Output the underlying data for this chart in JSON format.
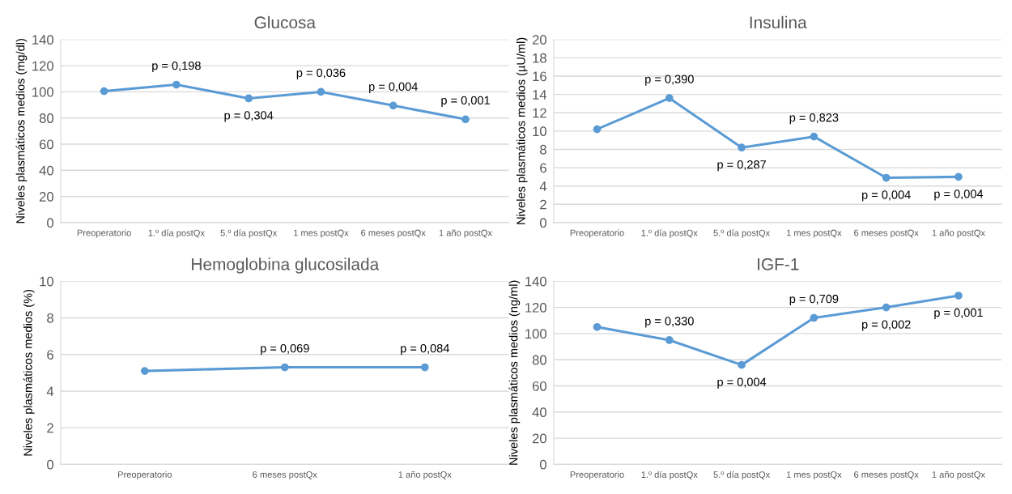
{
  "chart_data": [
    {
      "type": "line",
      "title": "Glucosa",
      "ylabel": "Niveles plasmáticos medios (mg/dl)",
      "categories": [
        "Preoperatorio",
        "1.º día postQx",
        "5.º día postQx",
        "1 mes postQx",
        "6 meses postQx",
        "1 año postQx"
      ],
      "series": [
        {
          "color": "#5b9bd5",
          "values": [
            100.5,
            105.5,
            95,
            100,
            89.5,
            79
          ]
        }
      ],
      "ylim": [
        0,
        140
      ],
      "yticks": [
        0,
        20,
        40,
        60,
        80,
        100,
        120,
        140
      ],
      "grid": "y",
      "marker": "circle",
      "line_style": "solid",
      "annotations": [
        {
          "text": "p = 0,198",
          "x": "1.º día postQx",
          "y": 105.5
        },
        {
          "text": "p = 0,304",
          "x": "5.º día postQx",
          "y": 95
        },
        {
          "text": "p = 0,036",
          "x": "1 mes postQx",
          "y": 100
        },
        {
          "text": "p = 0,004",
          "x": "6 meses postQx",
          "y": 89.5
        },
        {
          "text": "p = 0,001",
          "x": "1 año postQx",
          "y": 79
        }
      ]
    },
    {
      "type": "line",
      "title": "Insulina",
      "ylabel": "Niveles plasmáticos medios (µU/ml)",
      "categories": [
        "Preoperatorio",
        "1.º día postQx",
        "5.º día postQx",
        "1 mes postQx",
        "6 meses postQx",
        "1 año postQx"
      ],
      "series": [
        {
          "color": "#5b9bd5",
          "values": [
            10.2,
            13.6,
            8.2,
            9.4,
            4.9,
            5.0
          ]
        }
      ],
      "ylim": [
        0,
        20
      ],
      "yticks": [
        0,
        2,
        4,
        6,
        8,
        10,
        12,
        14,
        16,
        18,
        20
      ],
      "grid": "y",
      "marker": "circle",
      "line_style": "solid",
      "annotations": [
        {
          "text": "p = 0,390",
          "x": "1.º día postQx",
          "y": 13.6
        },
        {
          "text": "p = 0,287",
          "x": "5.º día postQx",
          "y": 8.2
        },
        {
          "text": "p = 0,823",
          "x": "1 mes postQx",
          "y": 9.4
        },
        {
          "text": "p = 0,004",
          "x": "6 meses postQx",
          "y": 4.9
        },
        {
          "text": "p = 0,004",
          "x": "1 año postQx",
          "y": 5.0
        }
      ]
    },
    {
      "type": "line",
      "title": "Hemoglobina glucosilada",
      "ylabel": "Niveles plasmáticos medios (%)",
      "categories": [
        "Preoperatorio",
        "6 meses postQx",
        "1 año postQx"
      ],
      "series": [
        {
          "color": "#5b9bd5",
          "values": [
            5.1,
            5.3,
            5.3
          ]
        }
      ],
      "ylim": [
        0,
        10
      ],
      "yticks": [
        0,
        2,
        4,
        6,
        8,
        10
      ],
      "grid": "y",
      "marker": "circle",
      "line_style": "solid",
      "annotations": [
        {
          "text": "p = 0,069",
          "x": "6 meses postQx",
          "y": 5.3
        },
        {
          "text": "p = 0,084",
          "x": "1 año postQx",
          "y": 5.3
        }
      ]
    },
    {
      "type": "line",
      "title": "IGF-1",
      "ylabel": "Niveles plasmáticos medios (ng/ml)",
      "categories": [
        "Preoperatorio",
        "1.º día postQx",
        "5.º día postQx",
        "1 mes postQx",
        "6 meses postQx",
        "1 año postQx"
      ],
      "series": [
        {
          "color": "#5b9bd5",
          "values": [
            105,
            95,
            76,
            112,
            120,
            129
          ]
        }
      ],
      "ylim": [
        0,
        140
      ],
      "yticks": [
        0,
        20,
        40,
        60,
        80,
        100,
        120,
        140
      ],
      "grid": "y",
      "marker": "circle",
      "line_style": "solid",
      "annotations": [
        {
          "text": "p = 0,330",
          "x": "1.º día postQx",
          "y": 95
        },
        {
          "text": "p = 0,004",
          "x": "5.º día postQx",
          "y": 76
        },
        {
          "text": "p = 0,709",
          "x": "1 mes postQx",
          "y": 112
        },
        {
          "text": "p = 0,002",
          "x": "6 meses postQx",
          "y": 120
        },
        {
          "text": "p = 0,001",
          "x": "1 año postQx",
          "y": 129
        }
      ]
    }
  ]
}
